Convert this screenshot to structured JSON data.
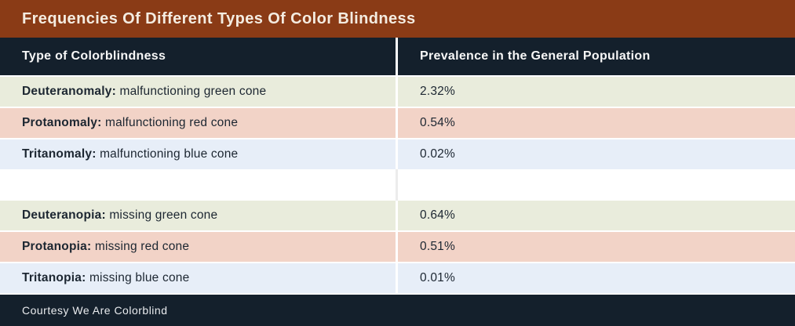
{
  "header": {
    "title": "Frequencies Of Different Types Of Color Blindness"
  },
  "table": {
    "columns": [
      {
        "label": "Type of Colorblindness"
      },
      {
        "label": "Prevalence in the General Population"
      }
    ],
    "rows": [
      {
        "term": "Deuteranomaly:",
        "description": " malfunctioning green cone",
        "prevalence": "2.32%",
        "tint": "green"
      },
      {
        "term": "Protanomaly:",
        "description": " malfunctioning red cone",
        "prevalence": "0.54%",
        "tint": "pink"
      },
      {
        "term": "Tritanomaly:",
        "description": " malfunctioning blue cone",
        "prevalence": "0.02%",
        "tint": "blue"
      },
      {
        "term": "Deuteranopia:",
        "description": " missing green cone",
        "prevalence": "0.64%",
        "tint": "green"
      },
      {
        "term": "Protanopia:",
        "description": " missing red cone",
        "prevalence": "0.51%",
        "tint": "pink"
      },
      {
        "term": "Tritanopia:",
        "description": " missing blue cone",
        "prevalence": "0.01%",
        "tint": "blue"
      }
    ]
  },
  "footer": {
    "credit": "Courtesy We Are Colorblind"
  },
  "colors": {
    "title_bar": "#8A3B16",
    "header_bar": "#14202C",
    "footer_bar": "#14202C",
    "row_green": "#E9ECDC",
    "row_pink": "#F2D3C7",
    "row_blue": "#E7EEF8",
    "text_dark": "#1C2631",
    "title_text": "#F4ECE1"
  },
  "chart_data": {
    "type": "table",
    "title": "Frequencies Of Different Types Of Color Blindness",
    "columns": [
      "Type of Colorblindness",
      "Prevalence in the General Population"
    ],
    "rows": [
      [
        "Deuteranomaly: malfunctioning green cone",
        "2.32%"
      ],
      [
        "Protanomaly: malfunctioning red cone",
        "0.54%"
      ],
      [
        "Tritanomaly: malfunctioning blue cone",
        "0.02%"
      ],
      [
        "Deuteranopia: missing green cone",
        "0.64%"
      ],
      [
        "Protanopia: missing red cone",
        "0.51%"
      ],
      [
        "Tritanopia: missing blue cone",
        "0.01%"
      ]
    ],
    "values_numeric_percent": [
      2.32,
      0.54,
      0.02,
      0.64,
      0.51,
      0.01
    ],
    "source_note": "Courtesy We Are Colorblind",
    "layout": "two-column table, blank separator row between anomalous trichromacy (rows 1-3) and dichromacy (rows 4-6)"
  }
}
